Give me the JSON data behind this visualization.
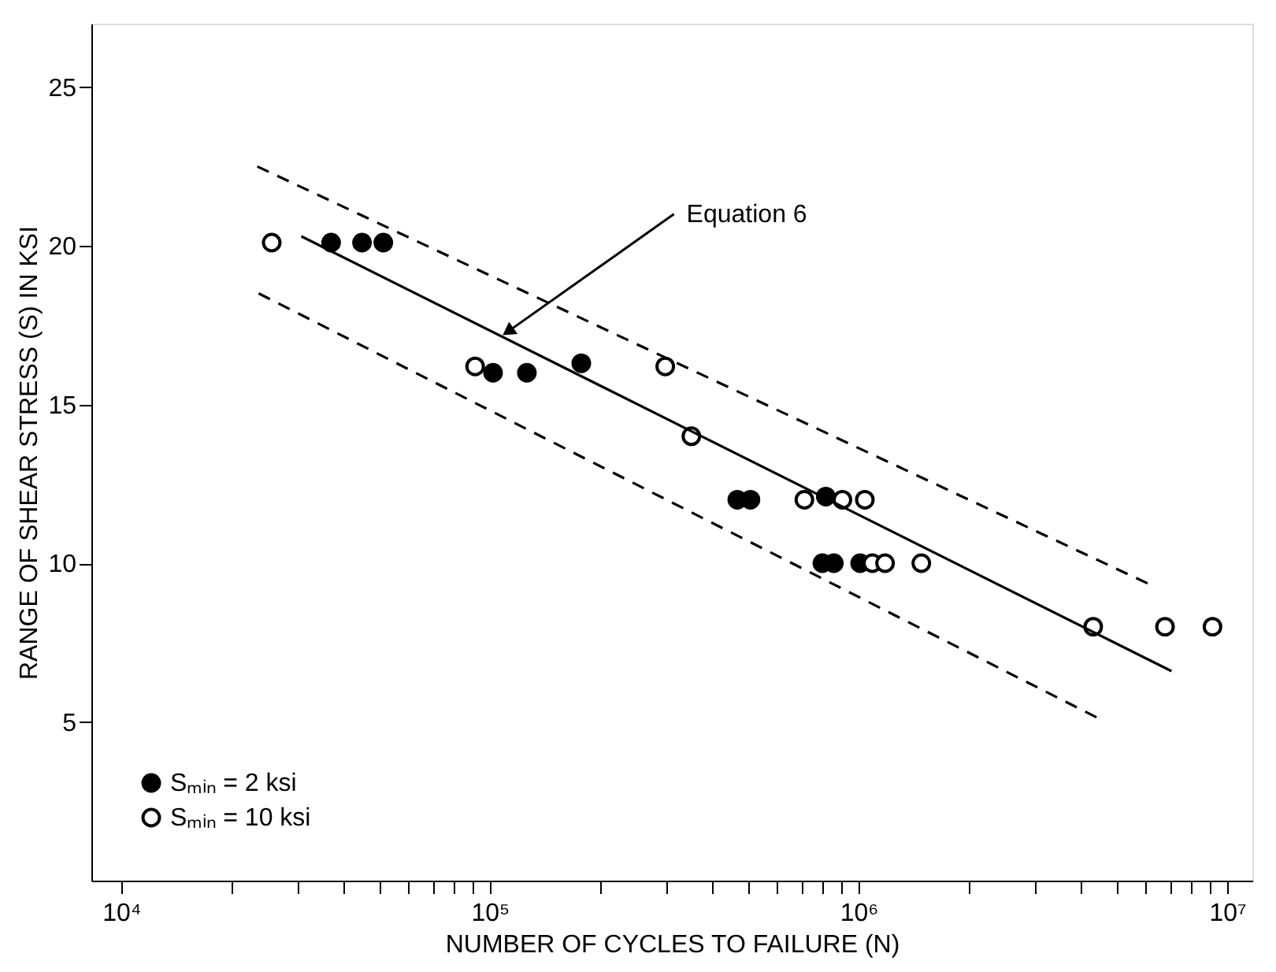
{
  "chart_data": {
    "type": "scatter",
    "xlabel": "NUMBER OF CYCLES TO FAILURE (N)",
    "ylabel": "RANGE OF SHEAR STRESS (S) IN KSI",
    "log": "x",
    "grid": false,
    "legend": "bottom left",
    "xlim": [
      8300,
      11700000
    ],
    "ylim": [
      0,
      27
    ],
    "xticks": [
      {
        "value": 10000,
        "label": "10⁴"
      },
      {
        "value": 20000,
        "label": null
      },
      {
        "value": 30000,
        "label": null
      },
      {
        "value": 40000,
        "label": null
      },
      {
        "value": 50000,
        "label": null
      },
      {
        "value": 60000,
        "label": null
      },
      {
        "value": 70000,
        "label": null
      },
      {
        "value": 80000,
        "label": null
      },
      {
        "value": 90000,
        "label": null
      },
      {
        "value": 100000,
        "label": "10⁵"
      },
      {
        "value": 200000,
        "label": null
      },
      {
        "value": 300000,
        "label": null
      },
      {
        "value": 400000,
        "label": null
      },
      {
        "value": 500000,
        "label": null
      },
      {
        "value": 600000,
        "label": null
      },
      {
        "value": 700000,
        "label": null
      },
      {
        "value": 800000,
        "label": null
      },
      {
        "value": 900000,
        "label": null
      },
      {
        "value": 1000000,
        "label": "10⁶"
      },
      {
        "value": 2000000,
        "label": null
      },
      {
        "value": 3000000,
        "label": null
      },
      {
        "value": 4000000,
        "label": null
      },
      {
        "value": 5000000,
        "label": null
      },
      {
        "value": 6000000,
        "label": null
      },
      {
        "value": 7000000,
        "label": null
      },
      {
        "value": 8000000,
        "label": null
      },
      {
        "value": 9000000,
        "label": null
      },
      {
        "value": 10000000,
        "label": "10⁷"
      }
    ],
    "yticks": [
      5,
      10,
      15,
      20,
      25
    ],
    "series": [
      {
        "name": "Sₘᵢₙ = 2 ksi",
        "color": "#000000",
        "marker": "circle",
        "x": [
          37100,
          45000,
          51400,
          102000,
          126000,
          177000,
          469000,
          509000,
          815000,
          798000,
          857000,
          1010000
        ],
        "values": [
          20.1,
          20.1,
          20.1,
          16.0,
          16.0,
          16.3,
          12.0,
          12.0,
          12.1,
          10.0,
          10.0,
          10.0
        ]
      },
      {
        "name": "Sₘᵢₙ = 10 ksi",
        "color": "#ffffff",
        "marker": "circle",
        "x": [
          25600,
          91200,
          299000,
          352000,
          713000,
          904000,
          1040000,
          1090000,
          1180000,
          1480000,
          4330000,
          6780000,
          9120000
        ],
        "values": [
          20.1,
          16.2,
          16.2,
          14.0,
          12.0,
          12.0,
          12.0,
          10.0,
          10.0,
          10.0,
          8.0,
          8.0,
          8.0
        ]
      },
      {
        "type": "line",
        "color": "#000000",
        "line_style": "solid",
        "marker": "none",
        "x": [
          30800,
          7060000
        ],
        "values": [
          20.3,
          6.6
        ]
      },
      {
        "type": "line",
        "color": "#000000",
        "line_style": "dashed",
        "marker": "none",
        "x": [
          23400,
          6250000
        ],
        "values": [
          22.5,
          9.3
        ]
      },
      {
        "type": "line",
        "color": "#000000",
        "line_style": "dashed",
        "marker": "none",
        "x": [
          23600,
          4500000
        ],
        "values": [
          18.5,
          5.1
        ]
      }
    ],
    "annotations": [
      {
        "text": "Equation 6",
        "x": 112000,
        "y": 17.3
      }
    ]
  }
}
